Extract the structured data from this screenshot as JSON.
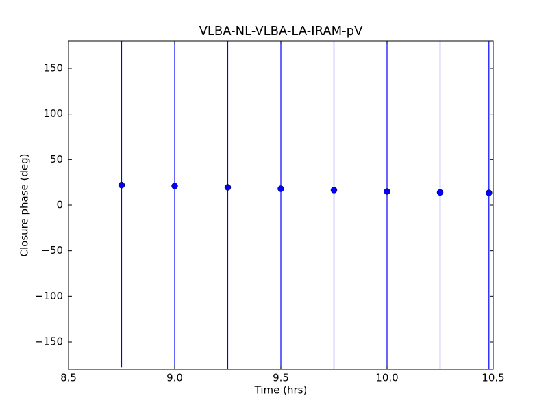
{
  "chart_data": {
    "type": "errorbar",
    "title": "VLBA-NL-VLBA-LA-IRAM-pV",
    "xlabel": "Time (hrs)",
    "ylabel": "Closure phase (deg)",
    "x": [
      8.75,
      9.0,
      9.25,
      9.5,
      9.75,
      10.0,
      10.25,
      10.48
    ],
    "values": [
      22,
      21,
      19.5,
      18,
      16.5,
      15,
      14,
      13.5
    ],
    "errors": [
      200,
      200,
      200,
      200,
      200,
      200,
      200,
      200
    ],
    "color": "#0000ff",
    "xlim": [
      8.5,
      10.5
    ],
    "xticks": [
      {
        "value": 8.5,
        "label": "8.5"
      },
      {
        "value": 9.0,
        "label": "9.0"
      },
      {
        "value": 9.5,
        "label": "9.5"
      },
      {
        "value": 10.0,
        "label": "10.0"
      },
      {
        "value": 10.5,
        "label": "10.5"
      }
    ],
    "ylim": [
      -180,
      180
    ],
    "yticks": [
      {
        "value": -150,
        "label": "−150"
      },
      {
        "value": -100,
        "label": "−100"
      },
      {
        "value": -50,
        "label": "−50"
      },
      0,
      50,
      100,
      150
    ]
  }
}
